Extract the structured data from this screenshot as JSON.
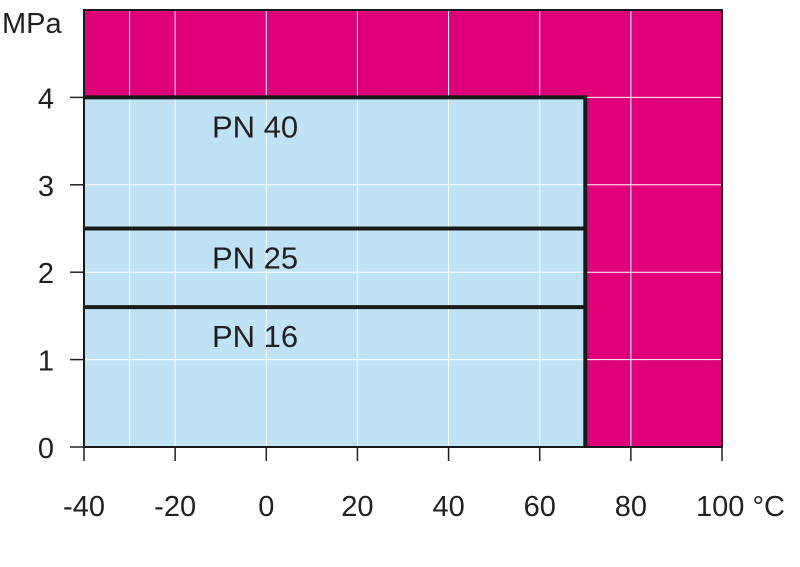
{
  "chart_data": {
    "type": "area",
    "xlabel": "°C",
    "ylabel": "MPa",
    "xlim": [
      -40,
      100
    ],
    "ylim": [
      0,
      5
    ],
    "x_ticks": [
      -40,
      -20,
      0,
      20,
      40,
      60,
      80,
      100
    ],
    "x_tick_labels": [
      "-40",
      "-20",
      "0",
      "20",
      "40",
      "60",
      "80",
      "100 °C"
    ],
    "y_ticks": [
      0,
      1,
      2,
      3,
      4
    ],
    "y_tick_labels": [
      "0",
      "1",
      "2",
      "3",
      "4"
    ],
    "grid": true,
    "extra_x_gridlines": [
      -30
    ],
    "allowed_region": {
      "x": [
        -40,
        70
      ],
      "y": [
        0,
        4
      ]
    },
    "series": [
      {
        "name": "PN 40",
        "max_temperature": 70,
        "pressure": 4.0
      },
      {
        "name": "PN 25",
        "max_temperature": 70,
        "pressure": 2.5
      },
      {
        "name": "PN 16",
        "max_temperature": 70,
        "pressure": 1.6
      }
    ],
    "colors": {
      "outside": "#e0007a",
      "allowed": "#bfe3f5",
      "boundary": "#1a1a1a",
      "grid": "#ffffff"
    }
  }
}
